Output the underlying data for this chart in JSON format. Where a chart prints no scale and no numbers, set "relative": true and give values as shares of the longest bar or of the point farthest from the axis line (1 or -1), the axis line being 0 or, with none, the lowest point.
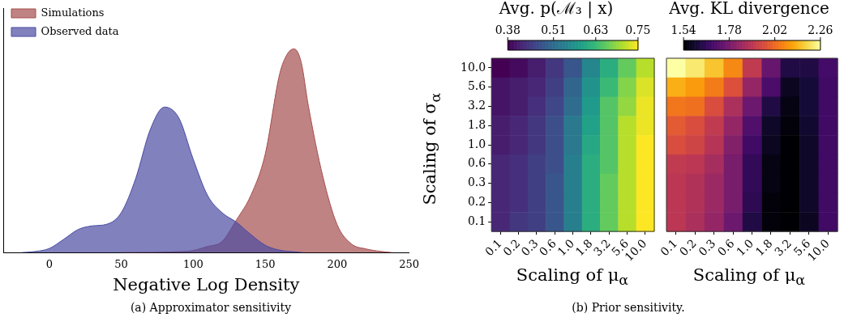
{
  "chart_data": [
    {
      "type": "area",
      "relative": true,
      "xlabel": "Negative Log Density",
      "xlim": [
        -32,
        250
      ],
      "xticks": [
        0,
        50,
        100,
        150,
        200,
        250
      ],
      "legend": "top left",
      "grid": false,
      "series": [
        {
          "name": "Simulations",
          "color": "#a54e4e",
          "x": [
            50,
            96,
            110,
            120,
            130,
            140,
            150,
            160,
            165,
            170,
            175,
            180,
            190,
            200,
            210,
            220,
            230,
            238
          ],
          "values": [
            0,
            0.006,
            0.03,
            0.054,
            0.16,
            0.28,
            0.482,
            0.875,
            0.97,
            1,
            0.935,
            0.72,
            0.375,
            0.137,
            0.042,
            0.018,
            0.006,
            0
          ]
        },
        {
          "name": "Observed data",
          "color": "#4b4ca3",
          "x": [
            -19,
            -10,
            0,
            10,
            20,
            30,
            40,
            50,
            60,
            70,
            80,
            90,
            100,
            110,
            120,
            130,
            140,
            150,
            160,
            170,
            176
          ],
          "values": [
            0,
            0.005,
            0.02,
            0.065,
            0.113,
            0.131,
            0.139,
            0.196,
            0.363,
            0.601,
            0.714,
            0.661,
            0.458,
            0.28,
            0.196,
            0.149,
            0.089,
            0.036,
            0.012,
            0.004,
            0
          ]
        }
      ],
      "annotations": [
        "(a) Approximator sensitivity"
      ]
    },
    {
      "type": "heatmap",
      "title": "Avg. p(ℳ₃ | x)",
      "xlabel": "Scaling of μ$_{α}$",
      "ylabel": "Scaling of σ$_{α}$",
      "categories": [
        "0.1",
        "0.2",
        "0.3",
        "0.6",
        "1.0",
        "1.8",
        "3.2",
        "5.6",
        "10.0"
      ],
      "y_categories": [
        "10.0",
        "5.6",
        "3.2",
        "1.8",
        "1.0",
        "0.6",
        "0.3",
        "0.2",
        "0.1"
      ],
      "clim": [
        0.38,
        0.75
      ],
      "cticks": [
        0.38,
        0.51,
        0.63,
        0.75
      ],
      "cells": [
        [
          0.38,
          0.39,
          0.41,
          0.44,
          0.48,
          0.55,
          0.61,
          0.66,
          0.71
        ],
        [
          0.4,
          0.41,
          0.42,
          0.45,
          0.5,
          0.57,
          0.63,
          0.68,
          0.73
        ],
        [
          0.4,
          0.41,
          0.43,
          0.46,
          0.51,
          0.58,
          0.65,
          0.69,
          0.74
        ],
        [
          0.41,
          0.42,
          0.44,
          0.47,
          0.53,
          0.59,
          0.65,
          0.71,
          0.74
        ],
        [
          0.41,
          0.42,
          0.44,
          0.47,
          0.53,
          0.6,
          0.65,
          0.71,
          0.75
        ],
        [
          0.42,
          0.43,
          0.45,
          0.47,
          0.54,
          0.61,
          0.65,
          0.71,
          0.75
        ],
        [
          0.42,
          0.43,
          0.45,
          0.48,
          0.54,
          0.61,
          0.66,
          0.71,
          0.75
        ],
        [
          0.42,
          0.43,
          0.45,
          0.48,
          0.54,
          0.61,
          0.66,
          0.71,
          0.75
        ],
        [
          0.42,
          0.44,
          0.45,
          0.48,
          0.54,
          0.61,
          0.66,
          0.71,
          0.75
        ]
      ],
      "annotations": [
        "(b) Prior sensitivity."
      ]
    },
    {
      "type": "heatmap",
      "title": "Avg. KL divergence",
      "xlabel": "Scaling of μ$_{α}$",
      "tick_labels": "x",
      "categories": [
        "0.1",
        "0.2",
        "0.3",
        "0.6",
        "1.0",
        "1.8",
        "3.2",
        "5.6",
        "10.0"
      ],
      "y_categories": [
        "10.0",
        "5.6",
        "3.2",
        "1.8",
        "1.0",
        "0.6",
        "0.3",
        "0.2",
        "0.1"
      ],
      "clim": [
        1.54,
        2.26
      ],
      "cticks": [
        1.54,
        1.78,
        2.02,
        2.26
      ],
      "cells": [
        [
          2.26,
          2.22,
          2.16,
          2.07,
          1.91,
          1.75,
          1.63,
          1.63,
          1.69
        ],
        [
          2.13,
          2.1,
          2.05,
          1.97,
          1.83,
          1.7,
          1.58,
          1.61,
          1.68
        ],
        [
          2.04,
          2.03,
          1.96,
          1.87,
          1.76,
          1.63,
          1.56,
          1.61,
          1.68
        ],
        [
          1.99,
          1.96,
          1.91,
          1.83,
          1.71,
          1.59,
          1.55,
          1.6,
          1.68
        ],
        [
          1.96,
          1.94,
          1.89,
          1.8,
          1.68,
          1.58,
          1.54,
          1.59,
          1.68
        ],
        [
          1.91,
          1.9,
          1.86,
          1.78,
          1.66,
          1.56,
          1.54,
          1.59,
          1.68
        ],
        [
          1.9,
          1.88,
          1.84,
          1.78,
          1.66,
          1.56,
          1.54,
          1.59,
          1.68
        ],
        [
          1.9,
          1.88,
          1.84,
          1.78,
          1.65,
          1.55,
          1.54,
          1.59,
          1.68
        ],
        [
          1.9,
          1.87,
          1.83,
          1.76,
          1.63,
          1.55,
          1.54,
          1.58,
          1.68
        ]
      ]
    }
  ]
}
